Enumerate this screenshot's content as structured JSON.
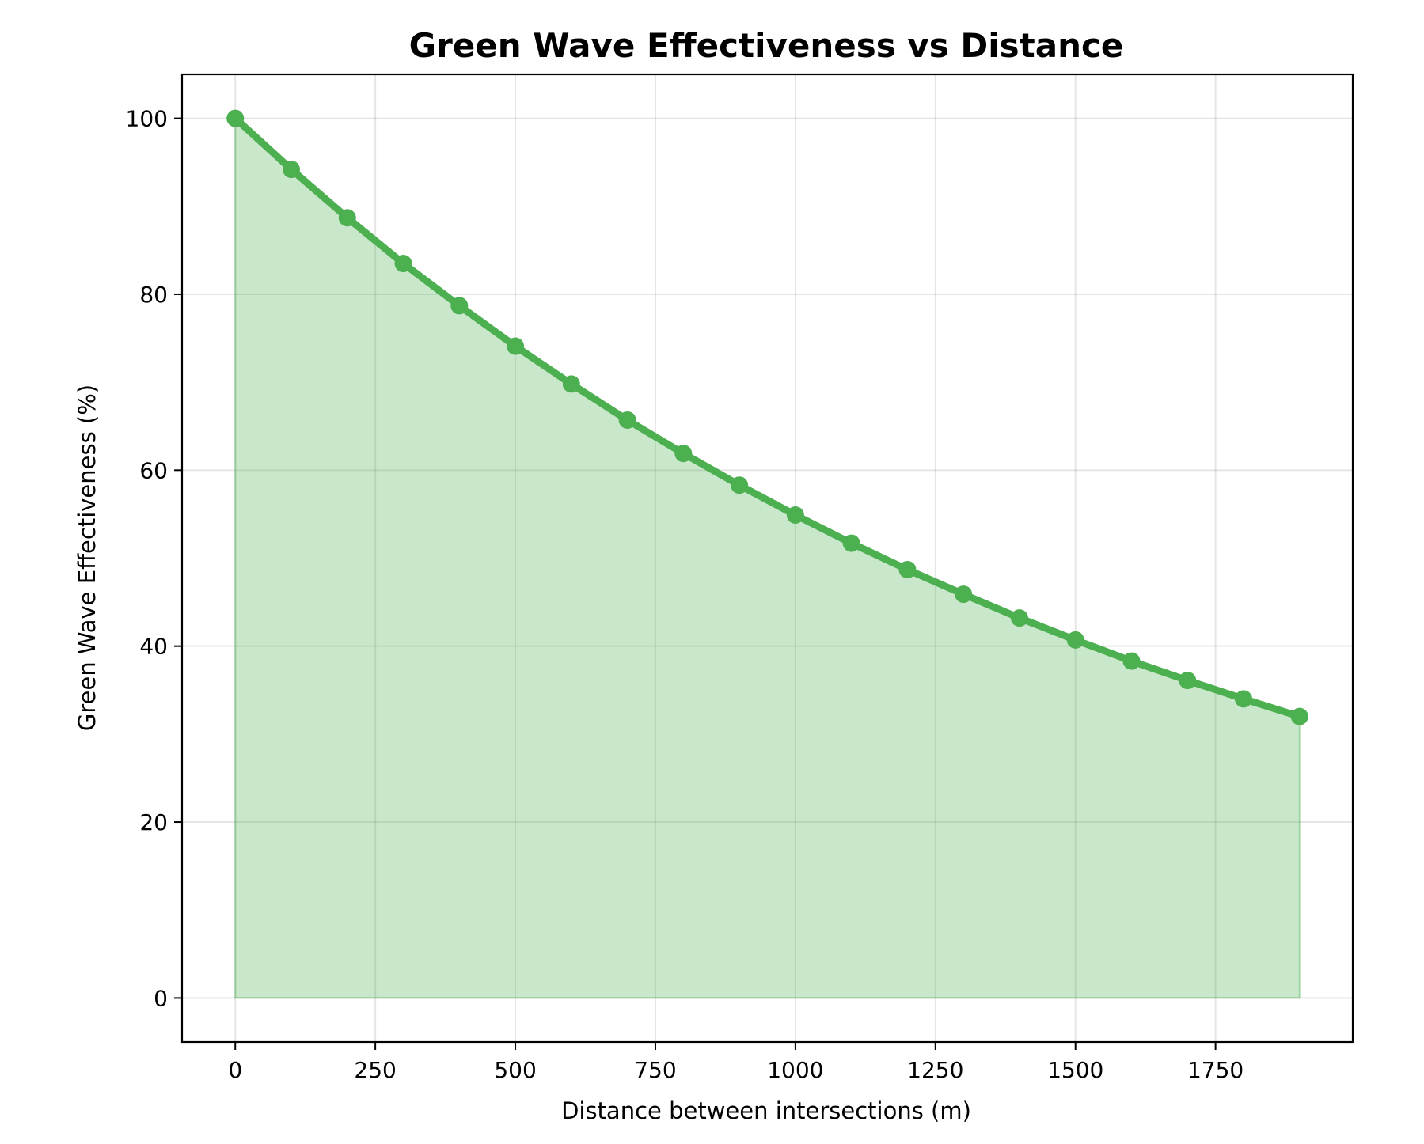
{
  "chart_data": {
    "type": "area",
    "title": "Green Wave Effectiveness vs Distance",
    "xlabel": "Distance between intersections (m)",
    "ylabel": "Green Wave Effectiveness (%)",
    "xlim": [
      -95,
      1995
    ],
    "ylim": [
      -5,
      105
    ],
    "x_ticks": [
      0,
      250,
      500,
      750,
      1000,
      1250,
      1500,
      1750
    ],
    "y_ticks": [
      0,
      20,
      40,
      60,
      80,
      100
    ],
    "grid": true,
    "legend": "none",
    "colors": {
      "line": "#4caf50",
      "fill": "#4caf50",
      "fill_opacity": 0.3
    },
    "series": [
      {
        "x": [
          0,
          100,
          200,
          300,
          400,
          500,
          600,
          700,
          800,
          900,
          1000,
          1100,
          1200,
          1300,
          1400,
          1500,
          1600,
          1700,
          1800,
          1900
        ],
        "values": [
          100.0,
          94.2,
          88.7,
          83.5,
          78.7,
          74.1,
          69.8,
          65.7,
          61.9,
          58.3,
          54.9,
          51.7,
          48.7,
          45.9,
          43.2,
          40.7,
          38.3,
          36.1,
          34.0,
          32.0
        ]
      }
    ]
  }
}
